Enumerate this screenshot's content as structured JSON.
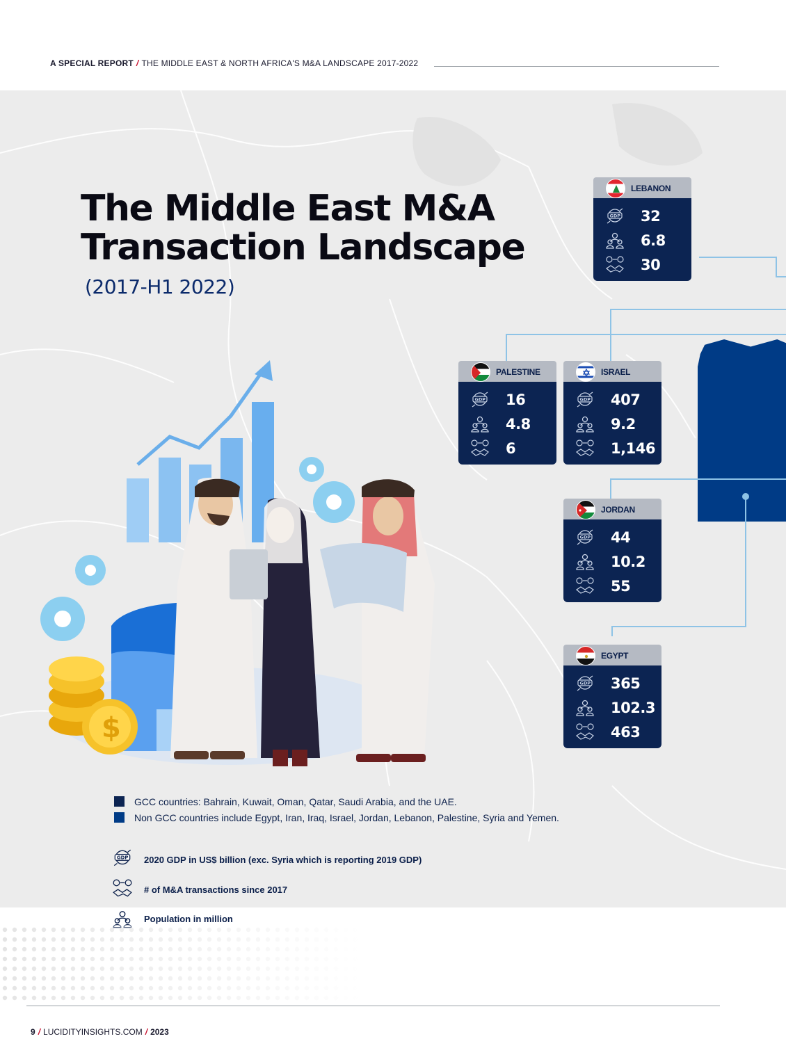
{
  "header": {
    "label": "A SPECIAL REPORT",
    "text": "THE MIDDLE EAST & NORTH AFRICA'S M&A LANDSCAPE 2017-2022"
  },
  "title": {
    "line1": "The Middle East M&A",
    "line2": "Transaction Landscape",
    "sub": "(2017-H1 2022)"
  },
  "countries": {
    "lebanon": {
      "name": "LEBANON",
      "gdp": "32",
      "population": "6.8",
      "transactions": "30"
    },
    "palestine": {
      "name": "PALESTINE",
      "gdp": "16",
      "population": "4.8",
      "transactions": "6"
    },
    "israel": {
      "name": "ISRAEL",
      "gdp": "407",
      "population": "9.2",
      "transactions": "1,146"
    },
    "jordan": {
      "name": "JORDAN",
      "gdp": "44",
      "population": "10.2",
      "transactions": "55"
    },
    "egypt": {
      "name": "EGYPT",
      "gdp": "365",
      "population": "102.3",
      "transactions": "463"
    }
  },
  "legend": {
    "gcc": "GCC countries: Bahrain, Kuwait, Oman, Qatar, Saudi Arabia, and the UAE.",
    "non_gcc": "Non GCC countries include Egypt, Iran, Iraq, Israel, Jordan, Lebanon, Palestine, Syria and Yemen.",
    "gcc_color": "#0c2452",
    "non_gcc_color": "#003b86"
  },
  "key": {
    "gdp": "2020 GDP in US$ billion (exc. Syria which is reporting 2019 GDP)",
    "transactions": "# of M&A transactions since 2017",
    "population": "Population in million",
    "gdp_icon_label": "GDP"
  },
  "footer": {
    "page": "9",
    "site": "LUCIDITYINSIGHTS.COM",
    "year": "2023"
  }
}
